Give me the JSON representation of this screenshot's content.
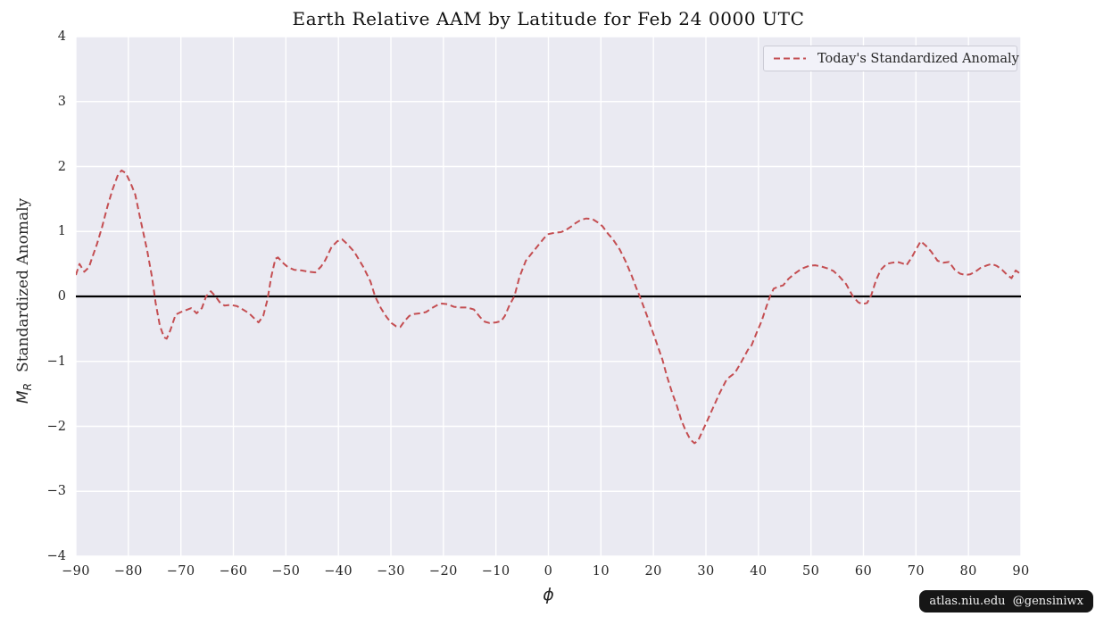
{
  "figure": {
    "watermark": "atlas.niu.edu  @gensiniwx"
  },
  "chart_data": {
    "type": "line",
    "title": "Earth Relative AAM by Latitude for Feb 24 0000 UTC",
    "xlabel": "ϕ",
    "ylabel_symbol": "M",
    "ylabel_subscript": "R",
    "ylabel_text": "Standardized Anomaly",
    "xlim": [
      -90,
      90
    ],
    "ylim": [
      -4,
      4
    ],
    "xticks": [
      -90,
      -80,
      -70,
      -60,
      -50,
      -40,
      -30,
      -20,
      -10,
      0,
      10,
      20,
      30,
      40,
      50,
      60,
      70,
      80,
      90
    ],
    "yticks": [
      -4,
      -3,
      -2,
      -1,
      0,
      1,
      2,
      3,
      4
    ],
    "grid": true,
    "grid_color": "#ffffff",
    "background_color": "#eaeaf2",
    "zero_line": true,
    "zero_line_color": "#000000",
    "legend_position": "upper right",
    "series": [
      {
        "name": "Today's Standardized Anomaly",
        "color": "#c44e52",
        "line_style": "dashed",
        "points": [
          [
            -90,
            0.33
          ],
          [
            -89.3,
            0.5
          ],
          [
            -88.4,
            0.38
          ],
          [
            -87.5,
            0.45
          ],
          [
            -87,
            0.57
          ],
          [
            -86,
            0.8
          ],
          [
            -85,
            1.07
          ],
          [
            -84,
            1.38
          ],
          [
            -83,
            1.65
          ],
          [
            -82,
            1.87
          ],
          [
            -81.3,
            1.94
          ],
          [
            -80.5,
            1.9
          ],
          [
            -79.5,
            1.73
          ],
          [
            -78.7,
            1.57
          ],
          [
            -77.9,
            1.26
          ],
          [
            -77.2,
            1.0
          ],
          [
            -76.4,
            0.7
          ],
          [
            -75.5,
            0.3
          ],
          [
            -74.8,
            -0.1
          ],
          [
            -74,
            -0.45
          ],
          [
            -73.2,
            -0.63
          ],
          [
            -72.7,
            -0.65
          ],
          [
            -72,
            -0.52
          ],
          [
            -71,
            -0.28
          ],
          [
            -70,
            -0.24
          ],
          [
            -69,
            -0.21
          ],
          [
            -68,
            -0.18
          ],
          [
            -67,
            -0.26
          ],
          [
            -66,
            -0.18
          ],
          [
            -65.2,
            0.0
          ],
          [
            -64.3,
            0.08
          ],
          [
            -63.4,
            0.0
          ],
          [
            -62.6,
            -0.09
          ],
          [
            -61.7,
            -0.14
          ],
          [
            -60.5,
            -0.13
          ],
          [
            -59.3,
            -0.15
          ],
          [
            -58.2,
            -0.2
          ],
          [
            -57,
            -0.26
          ],
          [
            -56,
            -0.34
          ],
          [
            -55.2,
            -0.4
          ],
          [
            -54.3,
            -0.3
          ],
          [
            -53.5,
            -0.05
          ],
          [
            -52.8,
            0.3
          ],
          [
            -52,
            0.58
          ],
          [
            -51.5,
            0.6
          ],
          [
            -50.6,
            0.52
          ],
          [
            -49.6,
            0.45
          ],
          [
            -48.4,
            0.41
          ],
          [
            -47,
            0.4
          ],
          [
            -45.6,
            0.38
          ],
          [
            -44.4,
            0.37
          ],
          [
            -43.3,
            0.46
          ],
          [
            -42.5,
            0.56
          ],
          [
            -41.3,
            0.76
          ],
          [
            -40.2,
            0.85
          ],
          [
            -39.3,
            0.88
          ],
          [
            -38.5,
            0.82
          ],
          [
            -37,
            0.69
          ],
          [
            -35.3,
            0.46
          ],
          [
            -33.9,
            0.23
          ],
          [
            -33,
            0.0
          ],
          [
            -31.9,
            -0.18
          ],
          [
            -30.8,
            -0.32
          ],
          [
            -29.9,
            -0.41
          ],
          [
            -29,
            -0.46
          ],
          [
            -28.2,
            -0.47
          ],
          [
            -27.4,
            -0.38
          ],
          [
            -26.5,
            -0.3
          ],
          [
            -25.5,
            -0.27
          ],
          [
            -24.4,
            -0.26
          ],
          [
            -23.3,
            -0.24
          ],
          [
            -22.2,
            -0.18
          ],
          [
            -21.1,
            -0.13
          ],
          [
            -20.3,
            -0.11
          ],
          [
            -19.2,
            -0.12
          ],
          [
            -18,
            -0.16
          ],
          [
            -16.8,
            -0.17
          ],
          [
            -15.5,
            -0.17
          ],
          [
            -14.2,
            -0.2
          ],
          [
            -13,
            -0.32
          ],
          [
            -12.1,
            -0.39
          ],
          [
            -11.2,
            -0.41
          ],
          [
            -10,
            -0.4
          ],
          [
            -9,
            -0.38
          ],
          [
            -8.3,
            -0.3
          ],
          [
            -7.4,
            -0.13
          ],
          [
            -6.5,
            0.0
          ],
          [
            -5.5,
            0.3
          ],
          [
            -4.3,
            0.55
          ],
          [
            -2.9,
            0.69
          ],
          [
            -1.8,
            0.8
          ],
          [
            -0.8,
            0.9
          ],
          [
            0,
            0.96
          ],
          [
            1.2,
            0.98
          ],
          [
            2.4,
            0.99
          ],
          [
            3.3,
            1.02
          ],
          [
            4.4,
            1.08
          ],
          [
            5.2,
            1.13
          ],
          [
            6.2,
            1.18
          ],
          [
            7.2,
            1.2
          ],
          [
            8.4,
            1.19
          ],
          [
            9.4,
            1.14
          ],
          [
            10.3,
            1.08
          ],
          [
            11.4,
            0.96
          ],
          [
            12.2,
            0.89
          ],
          [
            13.6,
            0.72
          ],
          [
            14.7,
            0.54
          ],
          [
            15.8,
            0.33
          ],
          [
            16.8,
            0.12
          ],
          [
            17.4,
            0.0
          ],
          [
            18.7,
            -0.28
          ],
          [
            20.2,
            -0.62
          ],
          [
            21.7,
            -0.97
          ],
          [
            22.5,
            -1.21
          ],
          [
            23.6,
            -1.49
          ],
          [
            24.5,
            -1.69
          ],
          [
            25.3,
            -1.9
          ],
          [
            26.1,
            -2.06
          ],
          [
            27,
            -2.2
          ],
          [
            27.8,
            -2.26
          ],
          [
            28.5,
            -2.22
          ],
          [
            29.3,
            -2.08
          ],
          [
            30.1,
            -1.94
          ],
          [
            31.2,
            -1.74
          ],
          [
            32.6,
            -1.49
          ],
          [
            34,
            -1.27
          ],
          [
            35.5,
            -1.18
          ],
          [
            36.8,
            -1.0
          ],
          [
            38,
            -0.82
          ],
          [
            38.7,
            -0.75
          ],
          [
            39.7,
            -0.55
          ],
          [
            40.6,
            -0.38
          ],
          [
            41.5,
            -0.16
          ],
          [
            42.2,
            0.0
          ],
          [
            42.9,
            0.12
          ],
          [
            43.8,
            0.15
          ],
          [
            44.7,
            0.17
          ],
          [
            45.7,
            0.27
          ],
          [
            46.9,
            0.35
          ],
          [
            48.3,
            0.43
          ],
          [
            49.6,
            0.47
          ],
          [
            50.8,
            0.48
          ],
          [
            52,
            0.46
          ],
          [
            53.2,
            0.43
          ],
          [
            54.3,
            0.39
          ],
          [
            55.5,
            0.3
          ],
          [
            56.7,
            0.19
          ],
          [
            58,
            0.0
          ],
          [
            59,
            -0.09
          ],
          [
            59.8,
            -0.12
          ],
          [
            60.7,
            -0.1
          ],
          [
            61.5,
            0.02
          ],
          [
            62.4,
            0.25
          ],
          [
            63.3,
            0.41
          ],
          [
            64.4,
            0.5
          ],
          [
            65.5,
            0.52
          ],
          [
            66.5,
            0.53
          ],
          [
            67.4,
            0.51
          ],
          [
            68.2,
            0.48
          ],
          [
            69.2,
            0.6
          ],
          [
            70,
            0.72
          ],
          [
            70.9,
            0.85
          ],
          [
            71.9,
            0.78
          ],
          [
            72.9,
            0.69
          ],
          [
            74.1,
            0.55
          ],
          [
            75.2,
            0.52
          ],
          [
            76.3,
            0.53
          ],
          [
            77.4,
            0.41
          ],
          [
            78.4,
            0.35
          ],
          [
            79.4,
            0.33
          ],
          [
            80.3,
            0.34
          ],
          [
            81.3,
            0.38
          ],
          [
            82.3,
            0.44
          ],
          [
            83.6,
            0.48
          ],
          [
            84.4,
            0.5
          ],
          [
            85.4,
            0.47
          ],
          [
            86.4,
            0.41
          ],
          [
            87.4,
            0.33
          ],
          [
            88.2,
            0.28
          ],
          [
            89,
            0.4
          ],
          [
            89.5,
            0.37
          ],
          [
            90,
            0.34
          ]
        ]
      }
    ]
  }
}
